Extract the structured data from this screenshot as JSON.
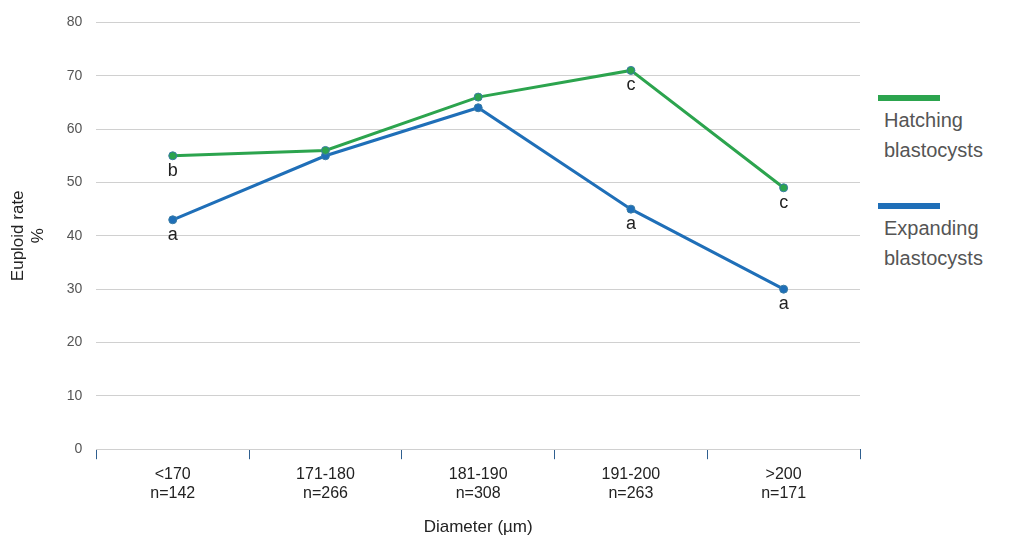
{
  "chart_data": {
    "type": "line",
    "x_label": "Diameter (µm)",
    "y_label": [
      "Euploid rate",
      "%"
    ],
    "categories": [
      "<170",
      "171-180",
      "181-190",
      "191-200",
      ">200"
    ],
    "category_notes": [
      "n=142",
      "n=266",
      "n=308",
      "n=263",
      "n=171"
    ],
    "series": [
      {
        "name": "Hatching blastocysts",
        "color": "#2ca44e",
        "marker": "circle",
        "values": [
          55,
          56,
          66,
          71,
          49
        ]
      },
      {
        "name": "Expanding blastocysts",
        "color": "#1f6fb8",
        "marker": "circle",
        "values": [
          43,
          55,
          64,
          45,
          30
        ]
      }
    ],
    "annotations": [
      {
        "series": "Hatching blastocysts",
        "category": "<170",
        "text": "b"
      },
      {
        "series": "Hatching blastocysts",
        "category": "191-200",
        "text": "c"
      },
      {
        "series": "Hatching blastocysts",
        "category": ">200",
        "text": "c"
      },
      {
        "series": "Expanding blastocysts",
        "category": "<170",
        "text": "a"
      },
      {
        "series": "Expanding blastocysts",
        "category": "191-200",
        "text": "a"
      },
      {
        "series": "Expanding blastocysts",
        "category": ">200",
        "text": "a"
      }
    ],
    "ylim": [
      0,
      80
    ],
    "yticks": [
      0,
      10,
      20,
      30,
      40,
      50,
      60,
      70,
      80
    ],
    "grid": true,
    "legend": "right"
  }
}
